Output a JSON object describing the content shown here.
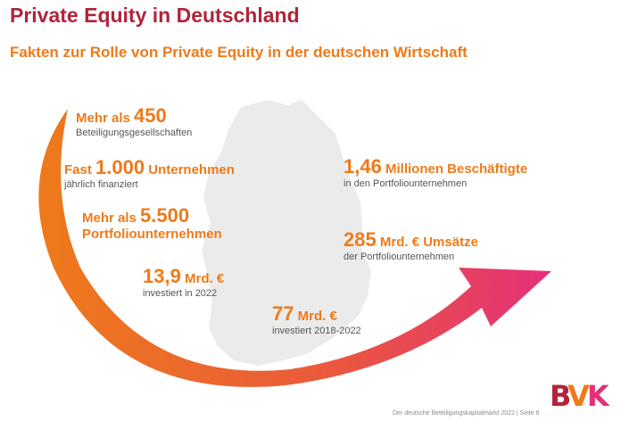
{
  "header": {
    "title": "Private Equity in Deutschland",
    "subtitle": "Fakten zur Rolle von Private Equity in der deutschen Wirtschaft"
  },
  "facts": [
    {
      "prefix": "Mehr als ",
      "number": "450",
      "suffix": "",
      "caption": "Beteiligungsgesellschaften"
    },
    {
      "prefix": "Fast ",
      "number": "1.000",
      "suffix": " Unternehmen",
      "caption": "jährlich finanziert"
    },
    {
      "prefix": "Mehr als ",
      "number": "5.500",
      "suffix": "",
      "caption": "Portfoliounternehmen"
    },
    {
      "prefix": "",
      "number": "13,9",
      "suffix": " Mrd. €",
      "caption": "investiert in 2022"
    },
    {
      "prefix": "",
      "number": "77",
      "suffix": " Mrd. €",
      "caption": "investiert 2018-2022"
    },
    {
      "prefix": "",
      "number": "1,46",
      "suffix": " Millionen Beschäftigte",
      "caption": "in den Portfoliounternehmen"
    },
    {
      "prefix": "",
      "number": "285",
      "suffix": " Mrd. € Umsätze",
      "caption": "der Portfoliounternehmen"
    }
  ],
  "footer": {
    "text": "Der deutsche Beteiligungskapitalmarkt 2022 | Seite 6"
  },
  "logo": {
    "letters": [
      "B",
      "V",
      "K"
    ]
  },
  "colors": {
    "title": "#b0243a",
    "accent": "#ee7a1a",
    "arrow_start": "#ee7a1a",
    "arrow_end": "#e5307a",
    "map": "#ebebeb"
  }
}
